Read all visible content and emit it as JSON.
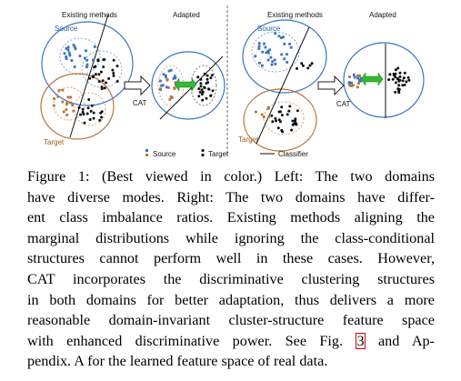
{
  "figure": {
    "left_panel": {
      "existing_label": "Existing methods",
      "adapted_label": "Adapted",
      "source_label": "Source",
      "target_label": "Target",
      "cat_label": "CAT"
    },
    "right_panel": {
      "existing_label": "Existing methods",
      "adapted_label": "Adapted",
      "source_label": "Source",
      "target_label": "Target",
      "cat_label": "CAT"
    },
    "legend": {
      "source": "Source",
      "target": "Target",
      "classifier": "Classifier"
    },
    "colors": {
      "source": "#3b73c4",
      "target": "#b8743a",
      "class_b": "#111111",
      "arrow": "#33bb33"
    }
  },
  "caption": {
    "lines": [
      "Figure 1: (Best viewed in color.) Left: The two domains",
      "have diverse modes. Right: The two domains have differ-",
      "ent class imbalance ratios. Existing methods aligning the",
      "marginal distributions while ignoring the class-conditional",
      "structures cannot perform well in these cases. However,",
      "CAT incorporates the discriminative clustering structures",
      "in both domains for better adaptation, thus delivers a more",
      "reasonable domain-invariant cluster-structure feature space",
      "with enhanced discriminative power. See Fig."
    ],
    "ref": "3",
    "after_ref": " and Ap-",
    "last_line": "pendix. A for the learned feature space of real data."
  }
}
